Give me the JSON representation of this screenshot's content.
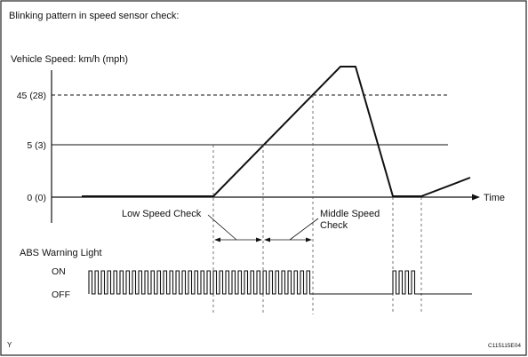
{
  "diagram": {
    "title": "Blinking pattern in speed sensor check:",
    "y_axis_title": "Vehicle Speed: km/h (mph)",
    "speed_levels": [
      {
        "label": "45 (28)",
        "style": "dashed"
      },
      {
        "label": "5 (3)",
        "style": "solid"
      },
      {
        "label": "0 (0)",
        "style": "axis"
      }
    ],
    "x_axis_label": "Time",
    "annotations": {
      "low_speed_check": "Low Speed Check",
      "middle_speed_check_line1": "Middle Speed",
      "middle_speed_check_line2": "Check"
    },
    "warning_light": {
      "title": "ABS Warning Light",
      "on_label": "ON",
      "off_label": "OFF"
    },
    "footer": {
      "left_mark": "Y",
      "figure_code": "C115115E04"
    },
    "colors": {
      "line": "#111111",
      "guide": "#555555",
      "border": "#222222"
    }
  }
}
